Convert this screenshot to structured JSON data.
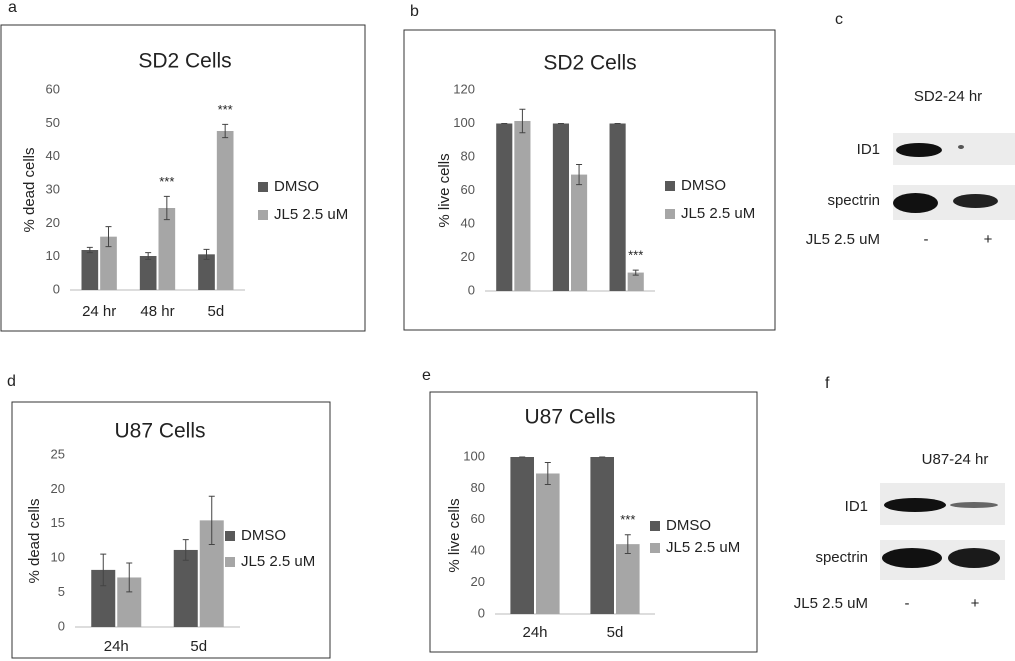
{
  "chart_data": [
    {
      "type": "bar",
      "label": "a",
      "title": "SD2 Cells",
      "ylabel": "% dead cells",
      "categories": [
        "24 hr",
        "48 hr",
        "5d"
      ],
      "series": [
        {
          "name": "DMSO",
          "color": "#595959",
          "values": [
            12,
            10.2,
            10.7
          ],
          "errors": [
            0.8,
            1,
            1.5
          ],
          "significance": [
            null,
            null,
            null
          ]
        },
        {
          "name": "JL5 2.5 uM",
          "color": "#a6a6a6",
          "values": [
            16,
            24.6,
            47.7
          ],
          "errors": [
            3,
            3.5,
            2
          ],
          "significance": [
            null,
            "***",
            "***"
          ]
        }
      ],
      "ylim": [
        0,
        60
      ],
      "yticks": [
        0,
        10,
        20,
        30,
        40,
        50,
        60
      ]
    },
    {
      "type": "bar",
      "label": "b",
      "title": "SD2 Cells",
      "ylabel": "% live cells",
      "categories": [
        null,
        null,
        null
      ],
      "series": [
        {
          "name": "DMSO",
          "color": "#595959",
          "values": [
            100,
            100,
            100
          ],
          "errors": [
            0,
            0,
            0
          ],
          "significance": [
            null,
            null,
            null
          ]
        },
        {
          "name": "JL5 2.5 uM",
          "color": "#a6a6a6",
          "values": [
            101.5,
            69.5,
            11
          ],
          "errors": [
            7,
            6,
            1.5
          ],
          "significance": [
            null,
            null,
            "***"
          ]
        }
      ],
      "ylim": [
        0,
        120
      ],
      "yticks": [
        0,
        20,
        40,
        60,
        80,
        100,
        120
      ]
    },
    {
      "type": "bar",
      "label": "d",
      "title": "U87 Cells",
      "ylabel": "% dead cells",
      "categories": [
        "24h",
        "5d"
      ],
      "series": [
        {
          "name": "DMSO",
          "color": "#595959",
          "values": [
            8.3,
            11.2
          ],
          "errors": [
            2.3,
            1.5
          ],
          "significance": [
            null,
            null
          ]
        },
        {
          "name": "JL5 2.5 uM",
          "color": "#a6a6a6",
          "values": [
            7.2,
            15.5
          ],
          "errors": [
            2.1,
            3.5
          ],
          "significance": [
            null,
            null
          ]
        }
      ],
      "ylim": [
        0,
        25
      ],
      "yticks": [
        0,
        5,
        10,
        15,
        20,
        25
      ]
    },
    {
      "type": "bar",
      "label": "e",
      "title": "U87 Cells",
      "ylabel": "% live cells",
      "categories": [
        "24h",
        "5d"
      ],
      "series": [
        {
          "name": "DMSO",
          "color": "#595959",
          "values": [
            100,
            100
          ],
          "errors": [
            0,
            0
          ],
          "significance": [
            null,
            null
          ]
        },
        {
          "name": "JL5 2.5 uM",
          "color": "#a6a6a6",
          "values": [
            89.5,
            44.5
          ],
          "errors": [
            7,
            6
          ],
          "significance": [
            null,
            "***"
          ]
        }
      ],
      "ylim": [
        0,
        100
      ],
      "yticks": [
        0,
        20,
        40,
        60,
        80,
        100
      ]
    }
  ],
  "blots": [
    {
      "label": "c",
      "title": "SD2-24 hr",
      "rows": [
        "ID1",
        "spectrin"
      ],
      "treatment": "JL5 2.5 uM",
      "lanes": [
        "-",
        "+"
      ]
    },
    {
      "label": "f",
      "title": "U87-24 hr",
      "rows": [
        "ID1",
        "spectrin"
      ],
      "treatment": "JL5 2.5 uM",
      "lanes": [
        "-",
        "+"
      ]
    }
  ]
}
